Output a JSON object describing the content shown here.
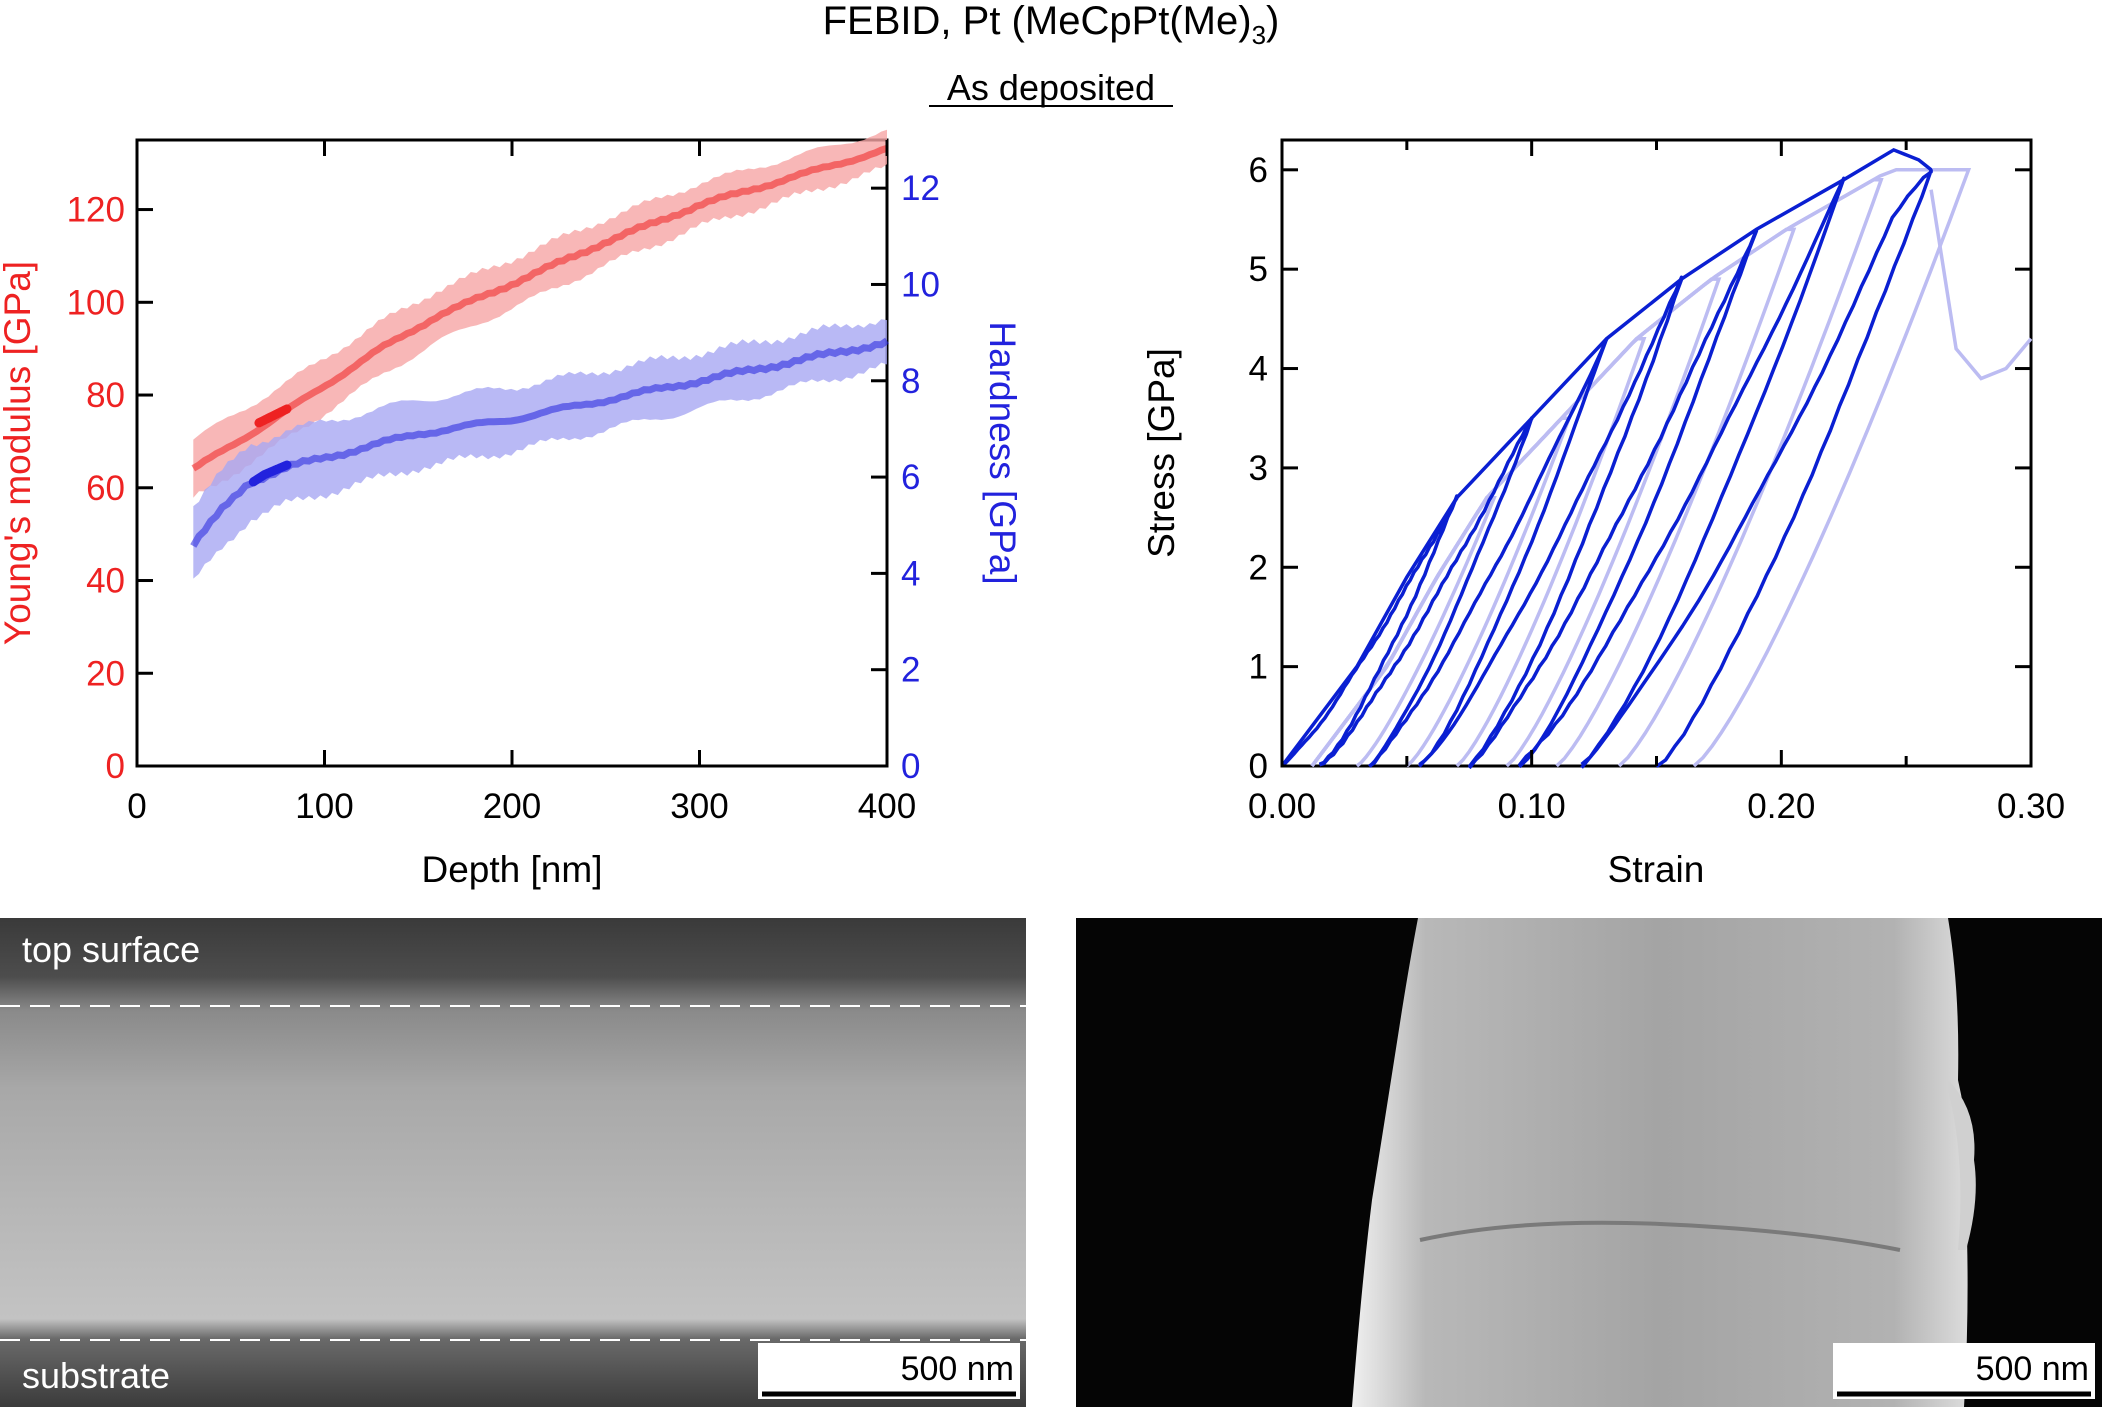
{
  "figure": {
    "title_main": "FEBID, Pt (MeCpPt(Me)",
    "title_sub": "3",
    "title_close": ")",
    "subtitle": "As deposited"
  },
  "colors": {
    "modulus": "#ee2222",
    "modulus_light": "#f6a5a5",
    "hardness": "#2222dd",
    "hardness_light": "#a8a8f2",
    "stress_dark": "#0a1fd2",
    "stress_light": "#bcbcf2"
  },
  "chart_data": [
    {
      "type": "line",
      "panel": "nanoindentation",
      "xlabel": "Depth [nm]",
      "ylabel_left": "Young's modulus [GPa]",
      "ylabel_right": "Hardness [GPa]",
      "xlim": [
        0,
        400
      ],
      "ylim_left": [
        0,
        135
      ],
      "ylim_right": [
        0,
        13
      ],
      "x_ticks": [
        "0",
        "100",
        "200",
        "300",
        "400"
      ],
      "y_left_ticks": [
        "0",
        "20",
        "40",
        "60",
        "80",
        "100",
        "120"
      ],
      "y_right_ticks": [
        "0",
        "2",
        "4",
        "6",
        "8",
        "10",
        "12"
      ],
      "grid": false,
      "series": [
        {
          "axis": "left",
          "x": [
            30,
            50,
            70,
            100,
            130,
            160,
            200,
            250,
            300,
            350,
            400
          ],
          "y": [
            64,
            69,
            74,
            82,
            90,
            97,
            104,
            113,
            121,
            127,
            133
          ],
          "band": 4
        },
        {
          "axis": "left",
          "x": [
            65,
            70,
            75,
            80
          ],
          "y": [
            74,
            75,
            76,
            77
          ]
        },
        {
          "axis": "right",
          "x": [
            30,
            45,
            60,
            80,
            100,
            150,
            200,
            250,
            300,
            350,
            400
          ],
          "y": [
            4.6,
            5.3,
            5.9,
            6.2,
            6.4,
            6.9,
            7.2,
            7.6,
            8.0,
            8.4,
            8.8
          ],
          "band": 0.5
        },
        {
          "axis": "right",
          "x": [
            62,
            68,
            74,
            80
          ],
          "y": [
            5.9,
            6.05,
            6.15,
            6.25
          ]
        }
      ]
    },
    {
      "type": "line",
      "panel": "micropillar compression",
      "xlabel": "Strain",
      "ylabel": "Stress [GPa]",
      "xlim": [
        0,
        0.3
      ],
      "ylim": [
        0,
        6.3
      ],
      "x_ticks": [
        "0.00",
        "0.10",
        "0.20",
        "0.30"
      ],
      "y_ticks": [
        "0",
        "1",
        "2",
        "3",
        "4",
        "5",
        "6"
      ],
      "grid": false,
      "cycles": [
        {
          "peak_strain": 0.07,
          "peak_stress": 2.7,
          "residual_strain": 0.015
        },
        {
          "peak_strain": 0.1,
          "peak_stress": 3.5,
          "residual_strain": 0.035
        },
        {
          "peak_strain": 0.13,
          "peak_stress": 4.3,
          "residual_strain": 0.055
        },
        {
          "peak_strain": 0.16,
          "peak_stress": 4.9,
          "residual_strain": 0.075
        },
        {
          "peak_strain": 0.19,
          "peak_stress": 5.4,
          "residual_strain": 0.095
        },
        {
          "peak_strain": 0.225,
          "peak_stress": 5.9,
          "residual_strain": 0.12
        },
        {
          "peak_strain": 0.26,
          "peak_stress": 6.0,
          "residual_strain": 0.15
        }
      ],
      "envelope": {
        "strain": [
          0.0,
          0.03,
          0.05,
          0.07,
          0.1,
          0.13,
          0.16,
          0.19,
          0.225,
          0.245,
          0.255,
          0.26
        ],
        "stress": [
          0.0,
          1.0,
          1.9,
          2.7,
          3.5,
          4.3,
          4.9,
          5.4,
          5.9,
          6.2,
          6.1,
          6.0
        ]
      },
      "light_tail": {
        "strain": [
          0.26,
          0.265,
          0.27,
          0.28,
          0.29,
          0.3
        ],
        "stress": [
          5.8,
          5.0,
          4.2,
          3.9,
          4.0,
          4.3
        ]
      }
    }
  ],
  "images": {
    "left": {
      "label_top": "top surface",
      "label_bottom": "substrate",
      "scalebar": "500 nm"
    },
    "right": {
      "scalebar": "500 nm"
    }
  }
}
